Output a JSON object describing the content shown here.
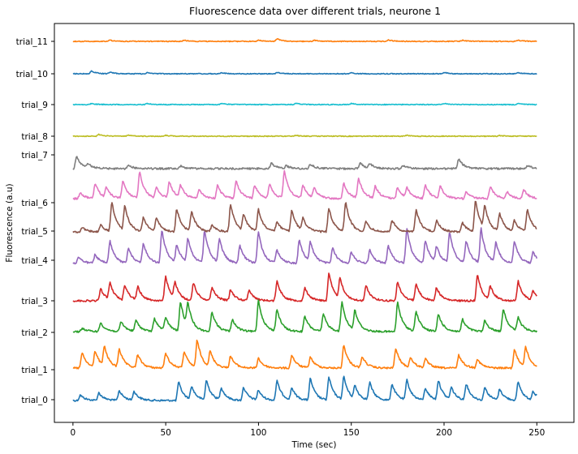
{
  "chart_data": {
    "type": "line",
    "title": "Fluorescence data over different trials, neurone 1",
    "xlabel": "Time (sec)",
    "ylabel": "Fluorescence (a.u)",
    "xlim": [
      -10,
      270
    ],
    "xticks": [
      0,
      50,
      100,
      150,
      200,
      250
    ],
    "x_range": [
      0,
      250
    ],
    "grid": false,
    "legend": "none",
    "series": [
      {
        "name": "trial_0",
        "color": "#1f77b4",
        "baseline": 0.0,
        "peaks": [
          [
            4,
            0.25
          ],
          [
            14,
            0.35
          ],
          [
            25,
            0.45
          ],
          [
            33,
            0.4
          ],
          [
            57,
            0.85
          ],
          [
            64,
            0.6
          ],
          [
            72,
            0.9
          ],
          [
            80,
            0.55
          ],
          [
            92,
            0.6
          ],
          [
            100,
            0.45
          ],
          [
            110,
            0.9
          ],
          [
            118,
            0.55
          ],
          [
            128,
            1.0
          ],
          [
            138,
            1.05
          ],
          [
            146,
            1.05
          ],
          [
            152,
            0.6
          ],
          [
            160,
            0.8
          ],
          [
            172,
            0.75
          ],
          [
            180,
            0.9
          ],
          [
            190,
            0.55
          ],
          [
            197,
            0.9
          ],
          [
            204,
            0.55
          ],
          [
            212,
            0.75
          ],
          [
            222,
            0.6
          ],
          [
            230,
            0.5
          ],
          [
            240,
            0.85
          ],
          [
            248,
            0.4
          ]
        ]
      },
      {
        "name": "trial_1",
        "color": "#ff7f0e",
        "baseline": 0.0,
        "peaks": [
          [
            5,
            0.7
          ],
          [
            12,
            0.75
          ],
          [
            17,
            0.9
          ],
          [
            25,
            0.85
          ],
          [
            35,
            0.6
          ],
          [
            50,
            0.7
          ],
          [
            60,
            0.75
          ],
          [
            67,
            1.25
          ],
          [
            74,
            0.7
          ],
          [
            85,
            0.55
          ],
          [
            100,
            0.45
          ],
          [
            118,
            0.6
          ],
          [
            128,
            0.5
          ],
          [
            146,
            1.05
          ],
          [
            156,
            0.5
          ],
          [
            174,
            0.9
          ],
          [
            182,
            0.45
          ],
          [
            190,
            0.4
          ],
          [
            208,
            0.6
          ],
          [
            218,
            0.4
          ],
          [
            238,
            0.85
          ],
          [
            244,
            0.9
          ]
        ]
      },
      {
        "name": "trial_2",
        "color": "#2ca02c",
        "baseline": 0.0,
        "peaks": [
          [
            5,
            0.15
          ],
          [
            15,
            0.4
          ],
          [
            26,
            0.45
          ],
          [
            34,
            0.5
          ],
          [
            44,
            0.6
          ],
          [
            50,
            0.6
          ],
          [
            58,
            1.35
          ],
          [
            62,
            1.05
          ],
          [
            75,
            0.9
          ],
          [
            86,
            0.55
          ],
          [
            100,
            1.45
          ],
          [
            110,
            1.0
          ],
          [
            125,
            0.7
          ],
          [
            135,
            0.8
          ],
          [
            145,
            1.35
          ],
          [
            152,
            0.9
          ],
          [
            175,
            1.35
          ],
          [
            185,
            0.9
          ],
          [
            197,
            0.8
          ],
          [
            210,
            0.55
          ],
          [
            222,
            0.5
          ],
          [
            232,
            1.05
          ],
          [
            240,
            0.6
          ]
        ]
      },
      {
        "name": "trial_3",
        "color": "#d62728",
        "baseline": 0.0,
        "peaks": [
          [
            15,
            0.55
          ],
          [
            20,
            0.75
          ],
          [
            28,
            0.7
          ],
          [
            35,
            0.6
          ],
          [
            50,
            1.1
          ],
          [
            55,
            0.7
          ],
          [
            65,
            0.8
          ],
          [
            75,
            0.6
          ],
          [
            85,
            0.5
          ],
          [
            95,
            0.5
          ],
          [
            110,
            0.9
          ],
          [
            125,
            0.6
          ],
          [
            138,
            1.25
          ],
          [
            144,
            0.95
          ],
          [
            158,
            0.7
          ],
          [
            175,
            0.85
          ],
          [
            185,
            0.75
          ],
          [
            196,
            0.6
          ],
          [
            218,
            1.2
          ],
          [
            225,
            0.6
          ],
          [
            240,
            0.9
          ],
          [
            248,
            0.45
          ]
        ]
      },
      {
        "name": "trial_4",
        "color": "#9467bd",
        "baseline": 0.0,
        "peaks": [
          [
            3,
            0.3
          ],
          [
            12,
            0.4
          ],
          [
            20,
            1.0
          ],
          [
            30,
            0.7
          ],
          [
            38,
            0.9
          ],
          [
            48,
            1.5
          ],
          [
            56,
            0.8
          ],
          [
            62,
            1.1
          ],
          [
            71,
            1.5
          ],
          [
            79,
            1.1
          ],
          [
            90,
            0.8
          ],
          [
            100,
            1.45
          ],
          [
            110,
            0.6
          ],
          [
            122,
            1.1
          ],
          [
            128,
            0.9
          ],
          [
            140,
            0.7
          ],
          [
            150,
            0.5
          ],
          [
            160,
            0.6
          ],
          [
            170,
            0.8
          ],
          [
            180,
            1.6
          ],
          [
            190,
            1.0
          ],
          [
            196,
            0.7
          ],
          [
            203,
            1.4
          ],
          [
            212,
            1.0
          ],
          [
            220,
            1.55
          ],
          [
            228,
            0.9
          ],
          [
            238,
            1.0
          ],
          [
            248,
            0.5
          ]
        ]
      },
      {
        "name": "trial_5",
        "color": "#8c564b",
        "baseline": 0.0,
        "peaks": [
          [
            5,
            0.2
          ],
          [
            15,
            0.3
          ],
          [
            21,
            1.35
          ],
          [
            28,
            1.1
          ],
          [
            38,
            0.65
          ],
          [
            45,
            0.6
          ],
          [
            56,
            1.05
          ],
          [
            64,
            0.9
          ],
          [
            75,
            0.3
          ],
          [
            85,
            1.25
          ],
          [
            92,
            0.75
          ],
          [
            100,
            1.0
          ],
          [
            110,
            0.45
          ],
          [
            118,
            0.95
          ],
          [
            124,
            0.55
          ],
          [
            138,
            1.1
          ],
          [
            147,
            1.35
          ],
          [
            158,
            0.45
          ],
          [
            172,
            0.55
          ],
          [
            185,
            1.0
          ],
          [
            196,
            0.5
          ],
          [
            210,
            0.4
          ],
          [
            217,
            1.4
          ],
          [
            222,
            1.0
          ],
          [
            230,
            0.8
          ],
          [
            238,
            0.5
          ],
          [
            245,
            1.0
          ]
        ]
      },
      {
        "name": "trial_6",
        "color": "#e377c2",
        "baseline": 0.0,
        "peaks": [
          [
            4,
            0.25
          ],
          [
            12,
            0.7
          ],
          [
            18,
            0.45
          ],
          [
            27,
            0.8
          ],
          [
            36,
            1.2
          ],
          [
            45,
            0.5
          ],
          [
            52,
            0.75
          ],
          [
            58,
            0.55
          ],
          [
            68,
            0.4
          ],
          [
            78,
            0.6
          ],
          [
            88,
            0.8
          ],
          [
            98,
            0.6
          ],
          [
            106,
            0.65
          ],
          [
            114,
            1.25
          ],
          [
            124,
            0.6
          ],
          [
            130,
            0.45
          ],
          [
            146,
            0.7
          ],
          [
            154,
            0.9
          ],
          [
            163,
            0.55
          ],
          [
            175,
            0.5
          ],
          [
            180,
            0.45
          ],
          [
            190,
            0.6
          ],
          [
            198,
            0.55
          ],
          [
            212,
            0.3
          ],
          [
            225,
            0.55
          ],
          [
            234,
            0.3
          ],
          [
            243,
            0.4
          ]
        ]
      },
      {
        "name": "trial_7",
        "color": "#7f7f7f",
        "baseline": 0.0,
        "peaks": [
          [
            2,
            0.55
          ],
          [
            8,
            0.2
          ],
          [
            30,
            0.15
          ],
          [
            58,
            0.12
          ],
          [
            107,
            0.25
          ],
          [
            115,
            0.12
          ],
          [
            128,
            0.2
          ],
          [
            155,
            0.25
          ],
          [
            160,
            0.2
          ],
          [
            178,
            0.15
          ],
          [
            208,
            0.45
          ],
          [
            245,
            0.15
          ]
        ]
      },
      {
        "name": "trial_8",
        "color": "#bcbd22",
        "baseline": 0.0,
        "peaks": [
          [
            14,
            0.08
          ],
          [
            30,
            0.05
          ],
          [
            50,
            0.04
          ],
          [
            120,
            0.04
          ],
          [
            180,
            0.04
          ],
          [
            230,
            0.03
          ]
        ]
      },
      {
        "name": "trial_9",
        "color": "#17becf",
        "baseline": 0.0,
        "peaks": [
          [
            10,
            0.05
          ],
          [
            40,
            0.05
          ],
          [
            80,
            0.05
          ],
          [
            120,
            0.06
          ],
          [
            150,
            0.05
          ],
          [
            200,
            0.05
          ],
          [
            240,
            0.05
          ]
        ]
      },
      {
        "name": "trial_10",
        "color": "#1f77b4",
        "baseline": 0.0,
        "peaks": [
          [
            10,
            0.12
          ],
          [
            20,
            0.08
          ],
          [
            40,
            0.05
          ],
          [
            80,
            0.04
          ],
          [
            110,
            0.06
          ],
          [
            150,
            0.05
          ],
          [
            200,
            0.06
          ],
          [
            240,
            0.05
          ]
        ]
      },
      {
        "name": "trial_11",
        "color": "#ff7f0e",
        "baseline": 0.0,
        "peaks": [
          [
            20,
            0.05
          ],
          [
            60,
            0.05
          ],
          [
            100,
            0.06
          ],
          [
            110,
            0.12
          ],
          [
            130,
            0.05
          ],
          [
            170,
            0.06
          ],
          [
            210,
            0.05
          ],
          [
            240,
            0.05
          ]
        ]
      }
    ]
  }
}
